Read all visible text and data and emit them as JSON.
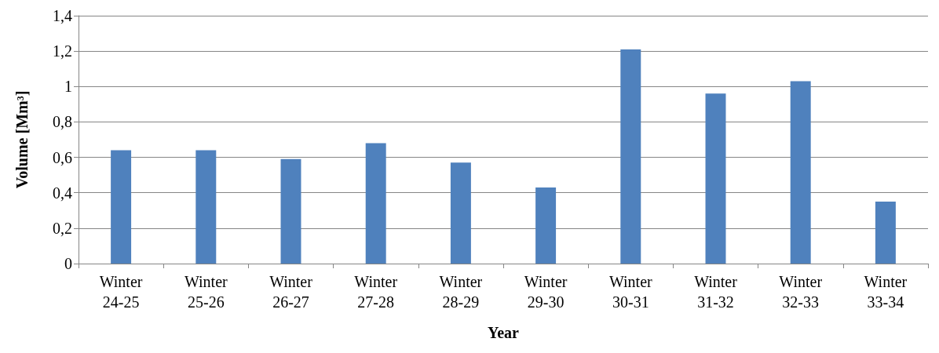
{
  "chart_data": {
    "type": "bar",
    "xlabel": "Year",
    "ylabel": "Volume [Mm³]",
    "categories": [
      "Winter\n24-25",
      "Winter\n25-26",
      "Winter\n26-27",
      "Winter\n27-28",
      "Winter\n28-29",
      "Winter\n29-30",
      "Winter\n30-31",
      "Winter\n31-32",
      "Winter\n32-33",
      "Winter\n33-34"
    ],
    "values": [
      0.64,
      0.64,
      0.59,
      0.68,
      0.57,
      0.43,
      1.21,
      0.96,
      1.03,
      0.35
    ],
    "color": "#4f81bd",
    "ylim": [
      0,
      1.4
    ],
    "yticks": [
      0,
      {
        "value": 0.2,
        "label": "0,2"
      },
      {
        "value": 0.4,
        "label": "0,4"
      },
      {
        "value": 0.6,
        "label": "0,6"
      },
      {
        "value": 0.8,
        "label": "0,8"
      },
      1,
      {
        "value": 1.2,
        "label": "1,2"
      },
      {
        "value": 1.4,
        "label": "1,4"
      }
    ],
    "grid": "y"
  }
}
